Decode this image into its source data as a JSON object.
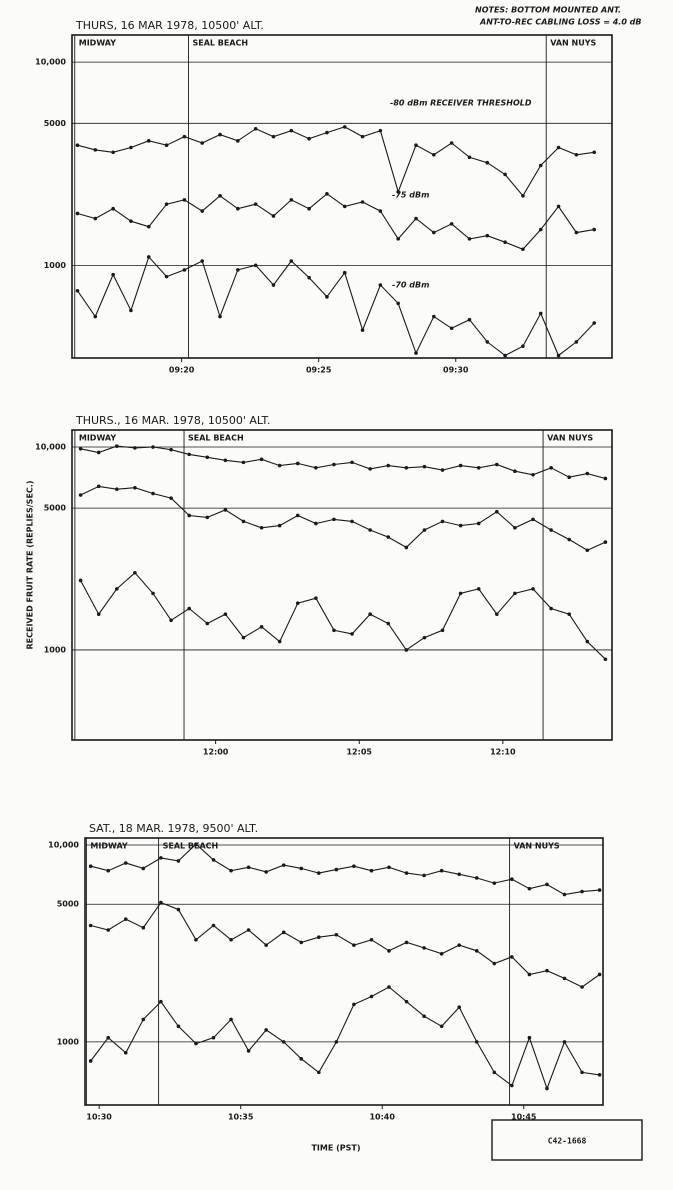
{
  "chart_data": [
    {
      "type": "line",
      "title": "THURS, 16 MAR 1978, 10500' ALT.",
      "log_y": true,
      "grid": true,
      "color": "#1a1a1a",
      "ylim": [
        350,
        13600
      ],
      "yticks": [
        {
          "value": 10000,
          "label": "10,000"
        },
        5000,
        1000
      ],
      "xlim": [
        16,
        35.7
      ],
      "xticks": [
        {
          "value": 20,
          "label": "09:20"
        },
        {
          "value": 25,
          "label": "09:25"
        },
        {
          "value": 30,
          "label": "09:30"
        }
      ],
      "markers": [
        {
          "label": "MIDWAY",
          "x": 16.1
        },
        {
          "label": "SEAL BEACH",
          "x": 20.25
        },
        {
          "label": "VAN NUYS",
          "x": 33.3
        }
      ],
      "x": [
        16.2,
        16.85,
        17.5,
        18.15,
        18.8,
        19.45,
        20.1,
        20.75,
        21.4,
        22.05,
        22.7,
        23.35,
        24.0,
        24.65,
        25.3,
        25.95,
        26.6,
        27.25,
        27.9,
        28.55,
        29.2,
        29.85,
        30.5,
        31.15,
        31.8,
        32.45,
        33.1,
        33.75,
        34.4,
        35.05
      ],
      "series": [
        {
          "name": "-80 dBm RECEIVER THRESHOLD",
          "values": [
            3900,
            3700,
            3600,
            3800,
            4100,
            3900,
            4300,
            4000,
            4400,
            4100,
            4700,
            4300,
            4600,
            4200,
            4500,
            4800,
            4300,
            4600,
            2300,
            3900,
            3500,
            4000,
            3400,
            3200,
            2800,
            2200,
            3100,
            3800,
            3500,
            3600
          ]
        },
        {
          "name": "-75 dBm",
          "values": [
            1800,
            1700,
            1900,
            1650,
            1550,
            2000,
            2100,
            1850,
            2200,
            1900,
            2000,
            1750,
            2100,
            1900,
            2250,
            1950,
            2050,
            1850,
            1350,
            1700,
            1450,
            1600,
            1350,
            1400,
            1300,
            1200,
            1500,
            1950,
            1450,
            1500
          ]
        },
        {
          "name": "-70 dBm",
          "values": [
            750,
            560,
            900,
            600,
            1100,
            880,
            950,
            1050,
            560,
            950,
            1000,
            800,
            1050,
            870,
            700,
            920,
            480,
            800,
            650,
            370,
            560,
            490,
            540,
            420,
            360,
            400,
            580,
            360,
            420,
            520
          ]
        }
      ]
    },
    {
      "type": "line",
      "title": "THURS., 16 MAR. 1978, 10500' ALT.",
      "log_y": true,
      "grid": true,
      "color": "#1a1a1a",
      "ylim": [
        360,
        12130
      ],
      "yticks": [
        {
          "value": 10000,
          "label": "10,000"
        },
        5000,
        1000
      ],
      "xlim": [
        55,
        73.8
      ],
      "xticks": [
        {
          "value": 60,
          "label": "12:00"
        },
        {
          "value": 65,
          "label": "12:05"
        },
        {
          "value": 70,
          "label": "12:10"
        }
      ],
      "markers": [
        {
          "label": "MIDWAY",
          "x": 55.1
        },
        {
          "label": "SEAL BEACH",
          "x": 58.9
        },
        {
          "label": "VAN NUYS",
          "x": 71.4
        }
      ],
      "x": [
        55.3,
        55.93,
        56.56,
        57.19,
        57.82,
        58.45,
        59.08,
        59.71,
        60.34,
        60.97,
        61.6,
        62.23,
        62.86,
        63.49,
        64.12,
        64.75,
        65.38,
        66.01,
        66.64,
        67.27,
        67.9,
        68.53,
        69.16,
        69.79,
        70.42,
        71.05,
        71.68,
        72.31,
        72.94,
        73.57
      ],
      "series": [
        {
          "values": [
            9800,
            9400,
            10100,
            9900,
            10000,
            9700,
            9200,
            8900,
            8600,
            8400,
            8700,
            8100,
            8300,
            7900,
            8200,
            8400,
            7800,
            8100,
            7900,
            8000,
            7700,
            8100,
            7900,
            8200,
            7600,
            7300,
            7900,
            7100,
            7400,
            7000
          ]
        },
        {
          "values": [
            5800,
            6400,
            6200,
            6300,
            5900,
            5600,
            4600,
            4500,
            4900,
            4300,
            4000,
            4100,
            4600,
            4200,
            4400,
            4300,
            3900,
            3600,
            3200,
            3900,
            4300,
            4100,
            4200,
            4800,
            4000,
            4400,
            3900,
            3500,
            3100,
            3400
          ]
        },
        {
          "values": [
            2200,
            1500,
            2000,
            2400,
            1900,
            1400,
            1600,
            1350,
            1500,
            1150,
            1300,
            1100,
            1700,
            1800,
            1250,
            1200,
            1500,
            1350,
            1000,
            1150,
            1250,
            1900,
            2000,
            1500,
            1900,
            2000,
            1600,
            1500,
            1100,
            900
          ]
        }
      ]
    },
    {
      "type": "line",
      "title": "SAT., 18 MAR. 1978, 9500' ALT.",
      "log_y": true,
      "grid": true,
      "color": "#1a1a1a",
      "ylim": [
        478,
        10850
      ],
      "yticks": [
        {
          "value": 10000,
          "label": "10,000"
        },
        5000,
        1000
      ],
      "xlim": [
        29.5,
        47.8
      ],
      "xticks": [
        {
          "value": 30,
          "label": "10:30"
        },
        {
          "value": 35,
          "label": "10:35"
        },
        {
          "value": 40,
          "label": "10:40"
        },
        {
          "value": 45,
          "label": "10:45"
        }
      ],
      "markers": [
        {
          "label": "MIDWAY",
          "x": 29.55
        },
        {
          "label": "SEAL BEACH",
          "x": 32.1
        },
        {
          "label": "VAN NUYS",
          "x": 44.5
        }
      ],
      "x": [
        29.7,
        30.32,
        30.94,
        31.56,
        32.18,
        32.8,
        33.42,
        34.04,
        34.66,
        35.28,
        35.9,
        36.52,
        37.14,
        37.76,
        38.38,
        39.0,
        39.62,
        40.24,
        40.86,
        41.48,
        42.1,
        42.72,
        43.34,
        43.96,
        44.58,
        45.2,
        45.82,
        46.44,
        47.06,
        47.68
      ],
      "series": [
        {
          "values": [
            7800,
            7400,
            8100,
            7600,
            8600,
            8300,
            10100,
            8400,
            7400,
            7700,
            7300,
            7900,
            7600,
            7200,
            7500,
            7800,
            7400,
            7700,
            7200,
            7000,
            7400,
            7100,
            6800,
            6400,
            6700,
            6000,
            6300,
            5600,
            5800,
            5900
          ]
        },
        {
          "values": [
            3900,
            3700,
            4200,
            3800,
            5100,
            4700,
            3300,
            3900,
            3300,
            3700,
            3100,
            3600,
            3200,
            3400,
            3500,
            3100,
            3300,
            2900,
            3200,
            3000,
            2800,
            3100,
            2900,
            2500,
            2700,
            2200,
            2300,
            2100,
            1900,
            2200
          ]
        },
        {
          "values": [
            800,
            1050,
            880,
            1300,
            1600,
            1200,
            980,
            1050,
            1300,
            900,
            1150,
            1000,
            820,
            700,
            1000,
            1550,
            1700,
            1900,
            1600,
            1350,
            1200,
            1500,
            1000,
            700,
            600,
            1050,
            580,
            1000,
            700,
            680
          ]
        }
      ]
    }
  ],
  "notes": [
    "NOTES: BOTTOM MOUNTED ANT.",
    "ANT-TO-REC CABLING LOSS = 4.0 dB"
  ],
  "y_label": "RECEIVED FRUIT RATE (REPLIES/SEC.)",
  "x_label": "TIME (PST)",
  "stamp": "C42-1668"
}
